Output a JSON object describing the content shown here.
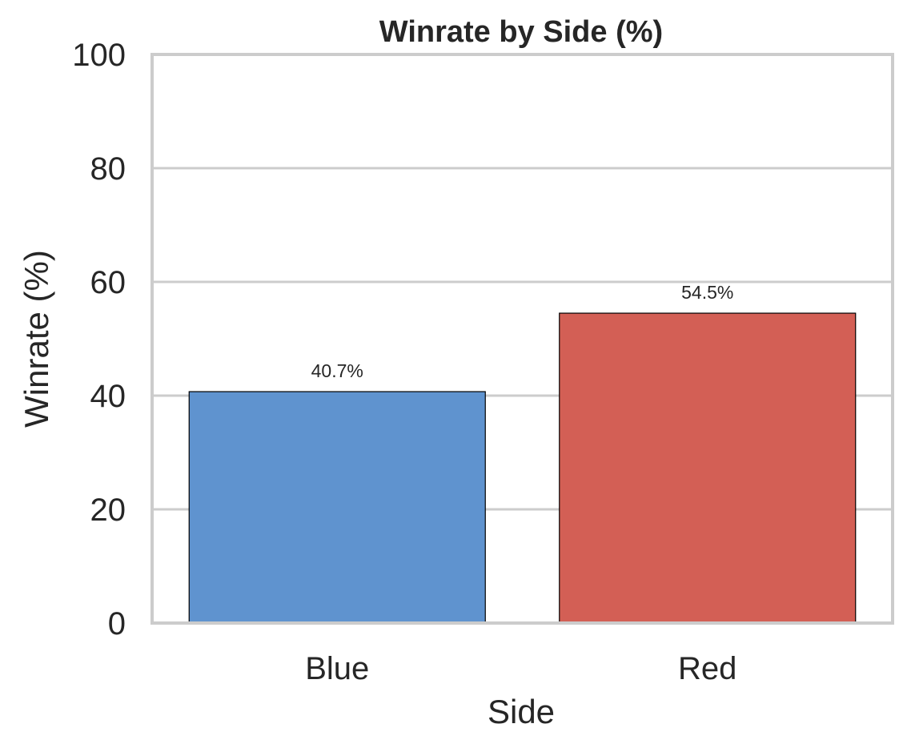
{
  "chart_data": {
    "type": "bar",
    "title": "Winrate by Side (%)",
    "xlabel": "Side",
    "ylabel": "Winrate (%)",
    "categories": [
      "Blue",
      "Red"
    ],
    "values": [
      40.7,
      54.5
    ],
    "value_labels": [
      "40.7%",
      "54.5%"
    ],
    "bar_colors": [
      "#5f93cf",
      "#d35f55"
    ],
    "ylim": [
      0,
      100
    ],
    "yticks": [
      0,
      20,
      40,
      60,
      80,
      100
    ],
    "grid": "horizontal",
    "legend": "none"
  },
  "colors": {
    "grid": "#cccccc",
    "frame": "#cccccc",
    "bar_edge": "#000000",
    "text": "#262626"
  }
}
